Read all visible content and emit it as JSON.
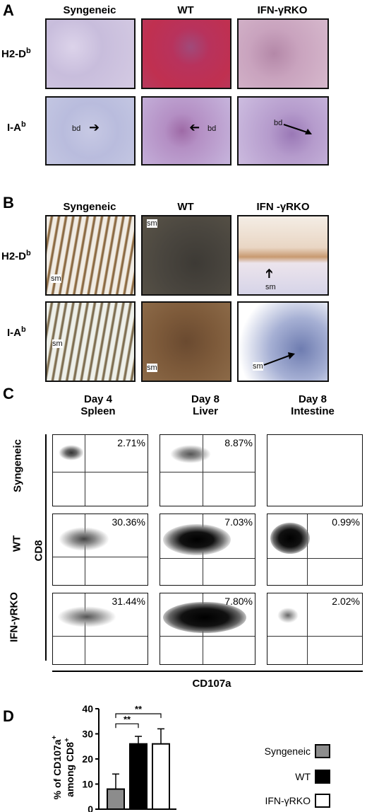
{
  "panelA": {
    "letter": "A",
    "columns": [
      "Syngeneic",
      "WT",
      "IFN-γRKO"
    ],
    "rows": [
      {
        "label": "H2-D",
        "sup": "b"
      },
      {
        "label": "I-A",
        "sup": "b"
      }
    ],
    "annotation": "bd"
  },
  "panelB": {
    "letter": "B",
    "columns": [
      "Syngeneic",
      "WT",
      "IFN -γRKO"
    ],
    "rows": [
      {
        "label": "H2-D",
        "sup": "b"
      },
      {
        "label": "I-A",
        "sup": "b"
      }
    ],
    "annotation": "sm"
  },
  "panelC": {
    "letter": "C",
    "columns": [
      {
        "line1": "Day 4",
        "line2": "Spleen"
      },
      {
        "line1": "Day 8",
        "line2": "Liver"
      },
      {
        "line1": "Day 8",
        "line2": "Intestine"
      }
    ],
    "rows": [
      "Syngeneic",
      "WT",
      "IFN-γRKO"
    ],
    "y_axis": "CD8",
    "x_axis": "CD107a",
    "percentages": [
      [
        "2.71%",
        "8.87%",
        ""
      ],
      [
        "30.36%",
        "7.03%",
        "0.99%"
      ],
      [
        "31.44%",
        "7.80%",
        "2.02%"
      ]
    ]
  },
  "panelD": {
    "letter": "D",
    "chart_data": {
      "type": "bar",
      "categories": [
        "Syngeneic",
        "WT",
        "IFN-γRKO"
      ],
      "values": [
        8,
        26,
        26
      ],
      "errors": [
        6,
        3,
        6
      ],
      "ylabel_line1": "% of CD107a",
      "ylabel_sup1": "+",
      "ylabel_line2": "among CD8",
      "ylabel_sup2": "+",
      "ylim": [
        0,
        40
      ],
      "yticks": [
        0,
        10,
        20,
        30,
        40
      ],
      "significance": [
        {
          "pair": [
            0,
            1
          ],
          "label": "**"
        },
        {
          "pair": [
            0,
            2
          ],
          "label": "**"
        }
      ],
      "colors": [
        "#8c8c8c",
        "#000000",
        "#ffffff"
      ],
      "legend": [
        "Syngeneic",
        "WT",
        "IFN-γRKO"
      ],
      "legend_placement": "right"
    }
  }
}
